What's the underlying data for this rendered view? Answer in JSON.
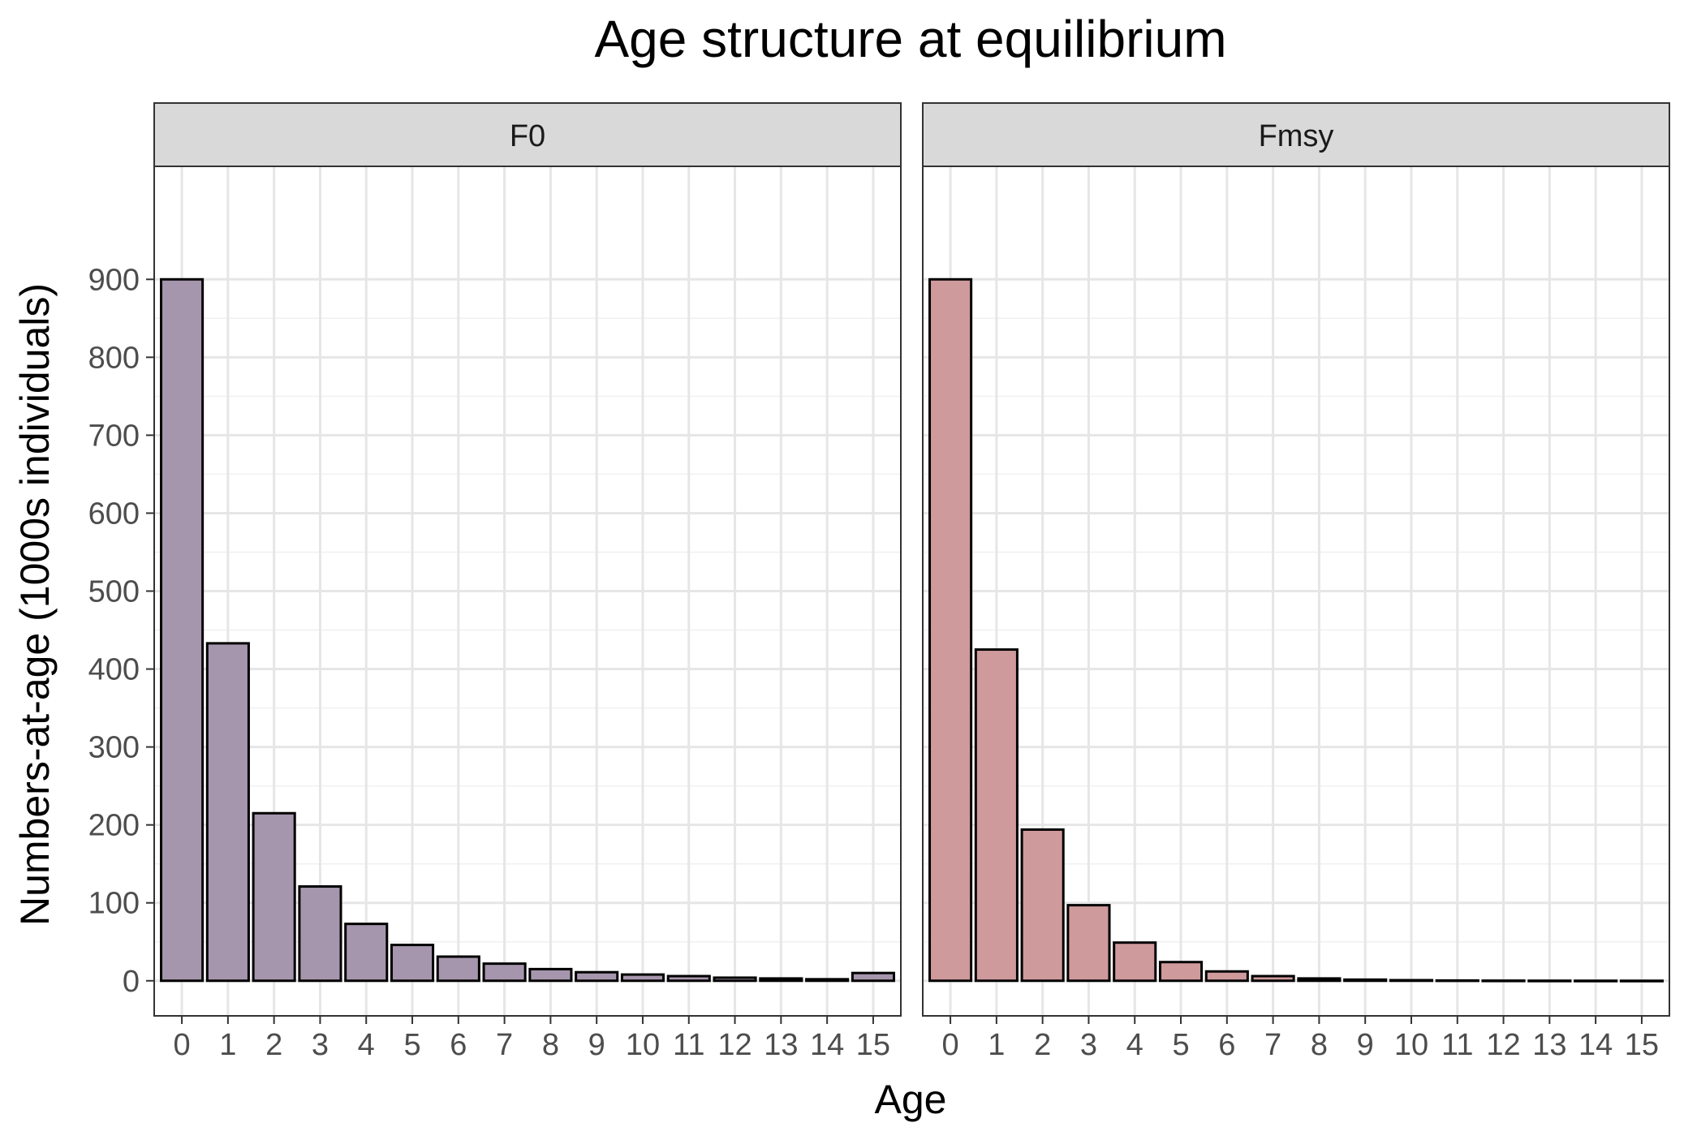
{
  "chart_data": {
    "type": "bar",
    "title": "Age structure at equilibrium",
    "xlabel": "Age",
    "ylabel": "Numbers-at-age (1000s individuals)",
    "categories": [
      "0",
      "1",
      "2",
      "3",
      "4",
      "5",
      "6",
      "7",
      "8",
      "9",
      "10",
      "11",
      "12",
      "13",
      "14",
      "15"
    ],
    "ylim": [
      -45,
      1045
    ],
    "yticks": [
      0,
      100,
      200,
      300,
      400,
      500,
      600,
      700,
      800,
      900
    ],
    "grid": true,
    "legend": "none",
    "panels": [
      {
        "name": "F0",
        "fill": "#a696ad",
        "values": [
          900,
          433,
          215,
          121,
          73,
          46,
          31,
          22,
          15,
          11,
          8,
          6,
          4,
          3,
          2,
          10
        ]
      },
      {
        "name": "Fmsy",
        "fill": "#cf9a9c",
        "values": [
          900,
          425,
          194,
          97,
          49,
          24,
          12,
          6,
          3,
          1.5,
          0.8,
          0.4,
          0.2,
          0.1,
          0.05,
          0.03
        ]
      }
    ]
  }
}
